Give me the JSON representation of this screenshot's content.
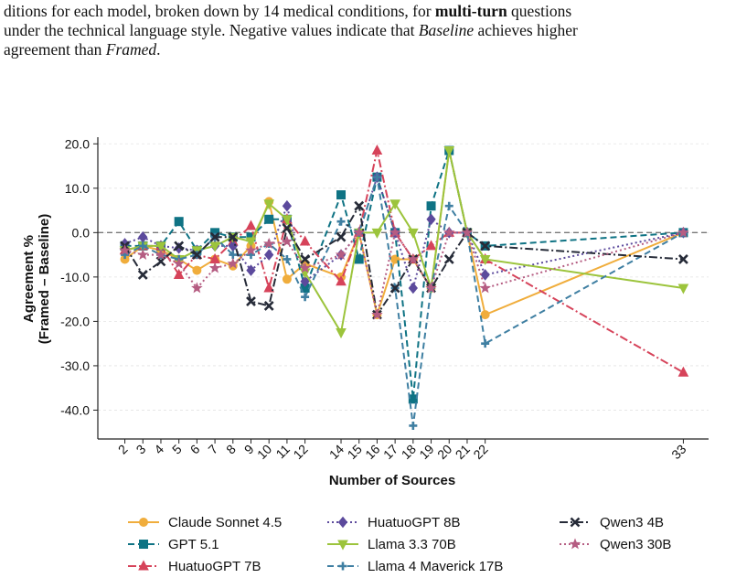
{
  "caption": {
    "lines": [
      [
        {
          "text": "ditions for each model, broken down by 14 medical conditions, for ",
          "style": "normal"
        },
        {
          "text": "multi-turn",
          "style": "bold"
        },
        {
          "text": " questions",
          "style": "normal"
        }
      ],
      [
        {
          "text": "under the technical language style. Negative values indicate that ",
          "style": "normal"
        },
        {
          "text": "Baseline",
          "style": "italic"
        },
        {
          "text": " achieves higher",
          "style": "normal"
        }
      ],
      [
        {
          "text": "agreement than ",
          "style": "normal"
        },
        {
          "text": "Framed",
          "style": "italic"
        },
        {
          "text": ".",
          "style": "normal"
        }
      ]
    ]
  },
  "chart_data": {
    "type": "line",
    "xlabel": "Number of Sources",
    "ylabel": [
      "Agreement %",
      "(Framed – Baseline)"
    ],
    "x": [
      2,
      3,
      4,
      5,
      6,
      7,
      8,
      9,
      10,
      11,
      12,
      14,
      15,
      16,
      17,
      18,
      19,
      20,
      21,
      22,
      33
    ],
    "xticks": [
      2,
      3,
      4,
      5,
      6,
      7,
      8,
      9,
      10,
      11,
      12,
      14,
      15,
      16,
      17,
      18,
      19,
      20,
      21,
      22,
      33
    ],
    "xlim": [
      0.5,
      34.4
    ],
    "ylim": [
      -46.5,
      21.5
    ],
    "yticks": [
      {
        "value": -40,
        "label": "-40.0"
      },
      {
        "value": -30,
        "label": "-30.0"
      },
      {
        "value": -20,
        "label": "-20.0"
      },
      {
        "value": -10,
        "label": "-10.0"
      },
      {
        "value": 0,
        "label": "0.0"
      },
      {
        "value": 10,
        "label": "10.0"
      },
      {
        "value": 20,
        "label": "20.0"
      }
    ],
    "grid": true,
    "reference_line": 0,
    "legend_position": "bottom",
    "series": [
      {
        "name": "Claude Sonnet 4.5",
        "color": "#f0ad3c",
        "linestyle": "solid",
        "marker": "circle",
        "values": [
          -6,
          -3,
          -4,
          -6,
          -8.5,
          -6,
          -7.5,
          -3,
          7,
          -10.5,
          -7,
          -10,
          0,
          -18.5,
          -6,
          -6,
          -12.5,
          18.5,
          0,
          -18.5,
          0
        ]
      },
      {
        "name": "GPT 5.1",
        "color": "#0f7384",
        "linestyle": "dashed",
        "marker": "square",
        "values": [
          -3,
          -3,
          -3,
          2.5,
          -4,
          0,
          -1,
          -1,
          3,
          3,
          -12.5,
          8.5,
          -6,
          12.5,
          0,
          -37.5,
          6,
          18.5,
          0,
          -3,
          0
        ]
      },
      {
        "name": "HuatuoGPT 7B",
        "color": "#d6435a",
        "linestyle": "dashdot",
        "marker": "triangle-up",
        "values": [
          -4,
          -3,
          -3,
          -9.5,
          -5,
          -6,
          -2,
          1.5,
          -12.5,
          3,
          -2,
          -11,
          0,
          18.5,
          0,
          -6,
          -3,
          0,
          0,
          -6,
          -31.5
        ]
      },
      {
        "name": "HuatuoGPT 8B",
        "color": "#5c4a9c",
        "linestyle": "dotted",
        "marker": "diamond",
        "values": [
          -2.5,
          -1,
          -3,
          -3.5,
          -4,
          -3,
          -3,
          -8.5,
          -5,
          6,
          -11,
          -5,
          0,
          12.5,
          0,
          -12.5,
          3,
          0,
          0,
          -9.5,
          0
        ]
      },
      {
        "name": "Llama 3.3 70B",
        "color": "#9cc43c",
        "linestyle": "solid",
        "marker": "triangle-down",
        "values": [
          -4,
          -3,
          -3,
          -6,
          -4,
          -3,
          -1,
          -2,
          6.5,
          3,
          -9,
          -22.5,
          0,
          0,
          6.5,
          0,
          -12.5,
          18.5,
          0,
          -6,
          -12.5
        ]
      },
      {
        "name": "Llama 4 Maverick 17B",
        "color": "#3f7fa2",
        "linestyle": "dashed",
        "marker": "plus",
        "values": [
          -5,
          -3,
          -5,
          -6,
          -5,
          -1,
          -5,
          -5,
          -2.5,
          -6,
          -14.5,
          2.5,
          0,
          12.5,
          -12.5,
          -43.5,
          -12.5,
          6,
          0,
          -25,
          0
        ]
      },
      {
        "name": "Qwen3 4B",
        "color": "#262b38",
        "linestyle": "dashdot",
        "marker": "x",
        "values": [
          -3,
          -9.5,
          -6.5,
          -3,
          -5,
          -1,
          -1,
          -15.5,
          -16.5,
          1,
          -6,
          -1,
          6,
          -18.5,
          -12.5,
          -6,
          -12.5,
          -6,
          0,
          -3,
          -6
        ]
      },
      {
        "name": "Qwen3 30B",
        "color": "#b55d82",
        "linestyle": "dotted",
        "marker": "star",
        "values": [
          -4,
          -5,
          -5,
          -7,
          -12.5,
          -8,
          -7,
          -4,
          -2.5,
          -2,
          -8,
          -5,
          0,
          -18.5,
          0,
          -6,
          -12.5,
          0,
          0,
          -12.5,
          0
        ]
      }
    ]
  }
}
